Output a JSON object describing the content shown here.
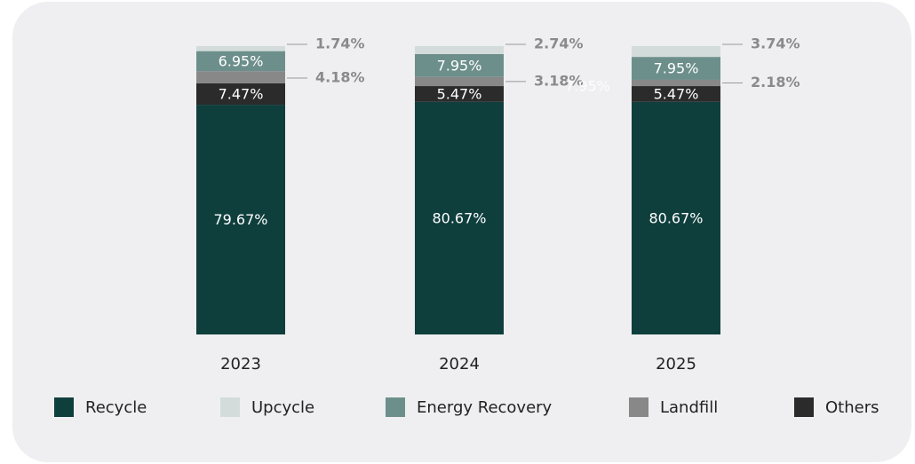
{
  "chart_data": {
    "type": "stacked_bar",
    "categories": [
      "2023",
      "2024",
      "2025"
    ],
    "ylim": [
      0,
      100
    ],
    "series": [
      {
        "name": "Recycle",
        "color": "#0f3f3d",
        "label_position": "inside",
        "values": [
          79.67,
          80.67,
          80.67
        ],
        "value_labels": [
          "79.67%",
          "80.67%",
          "80.67%"
        ]
      },
      {
        "name": "Others",
        "color": "#2b2b2b",
        "label_position": "inside",
        "values": [
          7.47,
          5.47,
          5.47
        ],
        "value_labels": [
          "7.47%",
          "5.47%",
          "5.47%"
        ]
      },
      {
        "name": "Landfill",
        "color": "#888888",
        "label_position": "outside",
        "values": [
          4.18,
          3.18,
          2.18
        ],
        "value_labels": [
          "4.18%",
          "3.18%",
          "2.18%"
        ]
      },
      {
        "name": "Energy Recovery",
        "color": "#6d8f8c",
        "label_position": "inside",
        "values": [
          6.95,
          7.95,
          7.95
        ],
        "value_labels": [
          "6.95%",
          "7.95%",
          "7.95%"
        ]
      },
      {
        "name": "Upcycle",
        "color": "#d4dcdb",
        "label_position": "outside",
        "values": [
          1.74,
          2.74,
          3.74
        ],
        "value_labels": [
          "1.74%",
          "2.74%",
          "3.74%"
        ]
      }
    ],
    "legend_order": [
      0,
      4,
      3,
      2,
      1
    ],
    "annotations": [
      "7.95%"
    ]
  }
}
